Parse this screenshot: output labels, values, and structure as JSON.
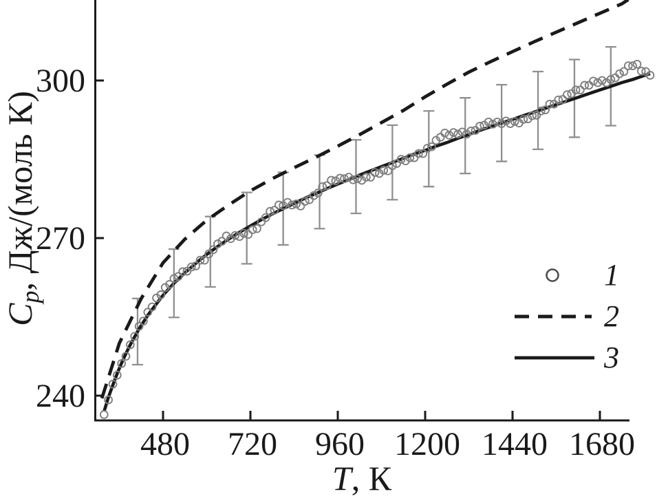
{
  "figure": {
    "background": "#ffffff",
    "ink_color": "#1a1a1a",
    "scatter_color": "#7f7f7f",
    "errorbar_color": "#8f8f8f",
    "legend_marker_color": "#4d4d4d"
  },
  "chart_data": {
    "type": "scatter",
    "title": "",
    "xlabel": "T, К",
    "xlabel_parts": [
      {
        "text": "T",
        "italic": true
      },
      {
        "text": ", К",
        "italic": false
      }
    ],
    "ylabel": "Cp, Дж/(моль К)",
    "ylabel_parts": [
      {
        "text": "C",
        "italic": true
      },
      {
        "text": "p",
        "italic": true,
        "sub": true
      },
      {
        "text": ", Дж/(моль К)",
        "italic": false
      }
    ],
    "x_ticks": [
      480,
      720,
      960,
      1200,
      1440,
      1680
    ],
    "y_ticks": [
      240,
      270,
      300
    ],
    "xlim": [
      291,
      1815
    ],
    "ylim": [
      235.4,
      315.4
    ],
    "grid": false,
    "legend": {
      "position": "right-middle",
      "entries": [
        {
          "marker": "circle",
          "label": "1"
        },
        {
          "marker": "dashed-line",
          "label": "2"
        },
        {
          "marker": "solid-line",
          "label": "3"
        }
      ]
    },
    "series": [
      {
        "name": "1",
        "type": "scatter",
        "points": [
          [
            318,
            236.4
          ],
          [
            330,
            239.2
          ],
          [
            342,
            242.2
          ],
          [
            354,
            243.9
          ],
          [
            366,
            246.1
          ],
          [
            378,
            247.5
          ],
          [
            390,
            249.7
          ],
          [
            402,
            251.3
          ],
          [
            414,
            253.2
          ],
          [
            426,
            254.2
          ],
          [
            438,
            255.9
          ],
          [
            450,
            256.9
          ],
          [
            462,
            258.6
          ],
          [
            474,
            259.2
          ],
          [
            486,
            260.6
          ],
          [
            498,
            261.2
          ],
          [
            510,
            262.3
          ],
          [
            522,
            262.7
          ],
          [
            534,
            263.6
          ],
          [
            546,
            263.7
          ],
          [
            558,
            264.5
          ],
          [
            570,
            264.7
          ],
          [
            582,
            265.8
          ],
          [
            594,
            265.8
          ],
          [
            606,
            267.0
          ],
          [
            618,
            267.8
          ],
          [
            630,
            268.9
          ],
          [
            642,
            269.4
          ],
          [
            654,
            270.4
          ],
          [
            666,
            269.9
          ],
          [
            678,
            270.5
          ],
          [
            690,
            270.3
          ],
          [
            702,
            270.9
          ],
          [
            714,
            270.7
          ],
          [
            726,
            271.6
          ],
          [
            738,
            271.8
          ],
          [
            750,
            273.1
          ],
          [
            762,
            273.9
          ],
          [
            774,
            275.1
          ],
          [
            786,
            275.3
          ],
          [
            798,
            276.3
          ],
          [
            810,
            276.2
          ],
          [
            822,
            276.8
          ],
          [
            834,
            276.3
          ],
          [
            846,
            276.5
          ],
          [
            858,
            276.1
          ],
          [
            870,
            277.0
          ],
          [
            882,
            277.3
          ],
          [
            894,
            278.1
          ],
          [
            906,
            278.6
          ],
          [
            918,
            279.8
          ],
          [
            930,
            280.0
          ],
          [
            942,
            281.0
          ],
          [
            954,
            280.9
          ],
          [
            966,
            281.4
          ],
          [
            978,
            281.3
          ],
          [
            990,
            281.6
          ],
          [
            1002,
            281.1
          ],
          [
            1014,
            281.3
          ],
          [
            1026,
            281.0
          ],
          [
            1038,
            281.6
          ],
          [
            1050,
            281.6
          ],
          [
            1062,
            282.5
          ],
          [
            1074,
            282.3
          ],
          [
            1086,
            282.9
          ],
          [
            1098,
            282.8
          ],
          [
            1110,
            283.8
          ],
          [
            1122,
            284.2
          ],
          [
            1134,
            285.0
          ],
          [
            1146,
            284.7
          ],
          [
            1158,
            285.3
          ],
          [
            1170,
            285.3
          ],
          [
            1182,
            286.1
          ],
          [
            1194,
            286.1
          ],
          [
            1206,
            287.1
          ],
          [
            1218,
            287.4
          ],
          [
            1230,
            288.6
          ],
          [
            1242,
            289.2
          ],
          [
            1254,
            290.0
          ],
          [
            1266,
            289.6
          ],
          [
            1278,
            290.1
          ],
          [
            1290,
            289.8
          ],
          [
            1302,
            290.2
          ],
          [
            1314,
            289.8
          ],
          [
            1326,
            290.4
          ],
          [
            1338,
            290.5
          ],
          [
            1350,
            291.3
          ],
          [
            1362,
            291.5
          ],
          [
            1374,
            292.1
          ],
          [
            1386,
            291.7
          ],
          [
            1398,
            292.1
          ],
          [
            1410,
            291.8
          ],
          [
            1422,
            292.3
          ],
          [
            1434,
            291.8
          ],
          [
            1446,
            292.2
          ],
          [
            1458,
            291.9
          ],
          [
            1470,
            292.6
          ],
          [
            1482,
            292.7
          ],
          [
            1494,
            293.3
          ],
          [
            1506,
            293.4
          ],
          [
            1518,
            294.2
          ],
          [
            1530,
            294.4
          ],
          [
            1542,
            295.5
          ],
          [
            1554,
            295.5
          ],
          [
            1566,
            296.3
          ],
          [
            1578,
            296.4
          ],
          [
            1590,
            297.3
          ],
          [
            1602,
            297.5
          ],
          [
            1614,
            298.2
          ],
          [
            1626,
            298.2
          ],
          [
            1638,
            299.1
          ],
          [
            1650,
            299.1
          ],
          [
            1662,
            299.9
          ],
          [
            1674,
            299.6
          ],
          [
            1686,
            300.0
          ],
          [
            1698,
            299.6
          ],
          [
            1710,
            300.2
          ],
          [
            1722,
            300.5
          ],
          [
            1734,
            301.3
          ],
          [
            1746,
            301.7
          ],
          [
            1758,
            302.8
          ],
          [
            1770,
            302.8
          ],
          [
            1782,
            303.1
          ],
          [
            1794,
            301.8
          ],
          [
            1806,
            301.7
          ],
          [
            1818,
            301.0
          ]
        ]
      },
      {
        "name": "2",
        "type": "line",
        "style": "dashed",
        "points": [
          [
            312,
            239.5
          ],
          [
            360,
            250.0
          ],
          [
            420,
            258.5
          ],
          [
            480,
            265.3
          ],
          [
            540,
            269.8
          ],
          [
            600,
            273.4
          ],
          [
            660,
            276.3
          ],
          [
            720,
            279.0
          ],
          [
            780,
            281.3
          ],
          [
            840,
            283.4
          ],
          [
            900,
            285.4
          ],
          [
            960,
            287.5
          ],
          [
            1020,
            289.7
          ],
          [
            1080,
            292.0
          ],
          [
            1140,
            294.3
          ],
          [
            1200,
            296.9
          ],
          [
            1260,
            299.3
          ],
          [
            1320,
            301.6
          ],
          [
            1380,
            303.6
          ],
          [
            1440,
            305.5
          ],
          [
            1500,
            307.4
          ],
          [
            1560,
            309.2
          ],
          [
            1620,
            311.0
          ],
          [
            1680,
            312.8
          ],
          [
            1740,
            314.6
          ],
          [
            1758,
            315.4
          ]
        ]
      },
      {
        "name": "3",
        "type": "line",
        "style": "solid",
        "points": [
          [
            318,
            237.0
          ],
          [
            330,
            239.7
          ],
          [
            342,
            242.0
          ],
          [
            354,
            244.2
          ],
          [
            366,
            246.2
          ],
          [
            378,
            248.0
          ],
          [
            390,
            249.7
          ],
          [
            402,
            251.2
          ],
          [
            414,
            252.7
          ],
          [
            426,
            254.0
          ],
          [
            438,
            255.3
          ],
          [
            450,
            256.4
          ],
          [
            462,
            257.5
          ],
          [
            474,
            258.6
          ],
          [
            486,
            259.6
          ],
          [
            510,
            261.4
          ],
          [
            540,
            263.4
          ],
          [
            570,
            265.2
          ],
          [
            600,
            266.9
          ],
          [
            630,
            268.4
          ],
          [
            660,
            269.8
          ],
          [
            690,
            271.1
          ],
          [
            720,
            272.3
          ],
          [
            750,
            273.5
          ],
          [
            780,
            274.6
          ],
          [
            810,
            275.6
          ],
          [
            840,
            276.6
          ],
          [
            870,
            277.6
          ],
          [
            900,
            278.5
          ],
          [
            930,
            279.4
          ],
          [
            960,
            280.3
          ],
          [
            990,
            281.1
          ],
          [
            1020,
            282.0
          ],
          [
            1050,
            282.8
          ],
          [
            1080,
            283.6
          ],
          [
            1110,
            284.4
          ],
          [
            1140,
            285.2
          ],
          [
            1170,
            286.0
          ],
          [
            1200,
            286.7
          ],
          [
            1230,
            287.5
          ],
          [
            1260,
            288.2
          ],
          [
            1290,
            289.0
          ],
          [
            1320,
            289.7
          ],
          [
            1350,
            290.5
          ],
          [
            1380,
            291.2
          ],
          [
            1410,
            291.9
          ],
          [
            1440,
            292.6
          ],
          [
            1470,
            293.3
          ],
          [
            1500,
            294.0
          ],
          [
            1530,
            294.7
          ],
          [
            1560,
            295.4
          ],
          [
            1590,
            296.1
          ],
          [
            1620,
            296.8
          ],
          [
            1650,
            297.5
          ],
          [
            1680,
            298.2
          ],
          [
            1710,
            298.9
          ],
          [
            1740,
            299.6
          ],
          [
            1770,
            300.2
          ],
          [
            1800,
            300.9
          ],
          [
            1818,
            301.3
          ]
        ]
      },
      {
        "name": "error-bars",
        "type": "errorbars",
        "points": [
          [
            410,
            252.2,
            6.3
          ],
          [
            510,
            261.4,
            6.5
          ],
          [
            610,
            267.4,
            6.7
          ],
          [
            710,
            271.9,
            6.8
          ],
          [
            810,
            275.6,
            6.9
          ],
          [
            910,
            278.8,
            7.0
          ],
          [
            1010,
            281.7,
            7.0
          ],
          [
            1110,
            284.4,
            7.1
          ],
          [
            1210,
            287.0,
            7.2
          ],
          [
            1310,
            289.5,
            7.2
          ],
          [
            1410,
            291.9,
            7.3
          ],
          [
            1510,
            294.3,
            7.4
          ],
          [
            1610,
            296.6,
            7.4
          ],
          [
            1710,
            298.9,
            7.5
          ]
        ]
      }
    ]
  }
}
